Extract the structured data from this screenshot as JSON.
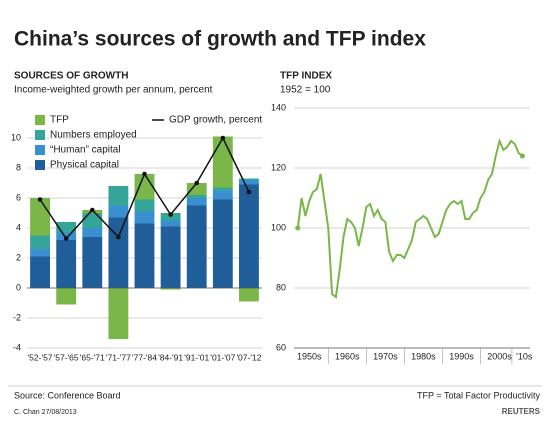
{
  "title": "China’s sources of growth and TFP index",
  "chart_data": [
    {
      "type": "bar",
      "stacked": true,
      "title": "SOURCES OF GROWTH",
      "subtitle": "Income-weighted growth per annum, percent",
      "categories": [
        "'52-'57",
        "'57-'65",
        "'65-'71",
        "'71-'77",
        "'77-'84",
        "'84-'91",
        "'91-'01",
        "'01-'07",
        "'07-'12"
      ],
      "series": [
        {
          "name": "Physical capital",
          "color": "#1f5e99",
          "values": [
            2.1,
            3.2,
            3.4,
            4.7,
            4.3,
            4.1,
            5.5,
            5.9,
            6.9
          ]
        },
        {
          "name": "“Human” capital",
          "color": "#3a8fd0",
          "values": [
            0.5,
            0.5,
            0.6,
            0.8,
            0.8,
            0.4,
            0.5,
            0.6,
            0.3
          ]
        },
        {
          "name": "Numbers employed",
          "color": "#35a59a",
          "values": [
            0.9,
            0.7,
            1.0,
            1.3,
            0.8,
            0.5,
            0.2,
            0.2,
            0.1
          ]
        },
        {
          "name": "TFP",
          "color": "#7ab648",
          "values": [
            2.5,
            -1.1,
            0.2,
            -3.4,
            1.7,
            -0.1,
            0.8,
            3.4,
            -0.9
          ]
        },
        {
          "name": "GDP growth, percent",
          "type": "line",
          "color": "#111111",
          "values": [
            5.9,
            3.3,
            5.2,
            3.4,
            7.6,
            4.9,
            7.0,
            10.0,
            6.4
          ]
        }
      ],
      "ylim": [
        -4,
        12
      ],
      "yticks": [
        -4,
        -2,
        0,
        2,
        4,
        6,
        8,
        10
      ],
      "grid": true,
      "legend": "upper left"
    },
    {
      "type": "line",
      "title": "TFP INDEX",
      "subtitle": "1952 = 100",
      "x": [
        1952,
        1953,
        1954,
        1955,
        1956,
        1957,
        1958,
        1959,
        1960,
        1961,
        1962,
        1963,
        1964,
        1965,
        1966,
        1967,
        1968,
        1969,
        1970,
        1971,
        1972,
        1973,
        1974,
        1975,
        1976,
        1977,
        1978,
        1979,
        1980,
        1981,
        1982,
        1983,
        1984,
        1985,
        1986,
        1987,
        1988,
        1989,
        1990,
        1991,
        1992,
        1993,
        1994,
        1995,
        1996,
        1997,
        1998,
        1999,
        2000,
        2001,
        2002,
        2003,
        2004,
        2005,
        2006,
        2007,
        2008,
        2009,
        2010,
        2011
      ],
      "series": [
        {
          "name": "TFP index",
          "color": "#7ab648",
          "values": [
            100,
            110,
            104,
            109,
            112,
            113,
            118,
            109,
            100,
            78,
            77,
            86,
            97,
            103,
            102,
            100,
            94,
            100,
            107,
            108,
            104,
            106,
            103,
            102,
            92,
            89,
            91,
            91,
            90,
            93,
            96,
            102,
            103,
            104,
            103,
            100,
            97,
            98,
            102,
            106,
            108,
            109,
            108,
            109,
            103,
            103,
            105,
            106,
            110,
            112,
            116,
            118,
            124,
            129,
            126,
            127,
            129,
            128,
            125,
            124
          ]
        }
      ],
      "xlim": [
        1951,
        2013
      ],
      "xticks": [
        {
          "value": 1955,
          "label": "1950s"
        },
        {
          "value": 1965,
          "label": "1960s"
        },
        {
          "value": 1975,
          "label": "1970s"
        },
        {
          "value": 1985,
          "label": "1980s"
        },
        {
          "value": 1995,
          "label": "1990s"
        },
        {
          "value": 2005,
          "label": "2000s"
        },
        {
          "value": 2011.5,
          "label": "'10s"
        }
      ],
      "ylim": [
        60,
        140
      ],
      "yticks": [
        60,
        80,
        100,
        120,
        140
      ],
      "grid": true
    }
  ],
  "source": "Source: Conference Board",
  "note": "TFP = Total Factor Productivity",
  "credit": "C. Chan 27/08/2013",
  "logo": "REUTERS"
}
